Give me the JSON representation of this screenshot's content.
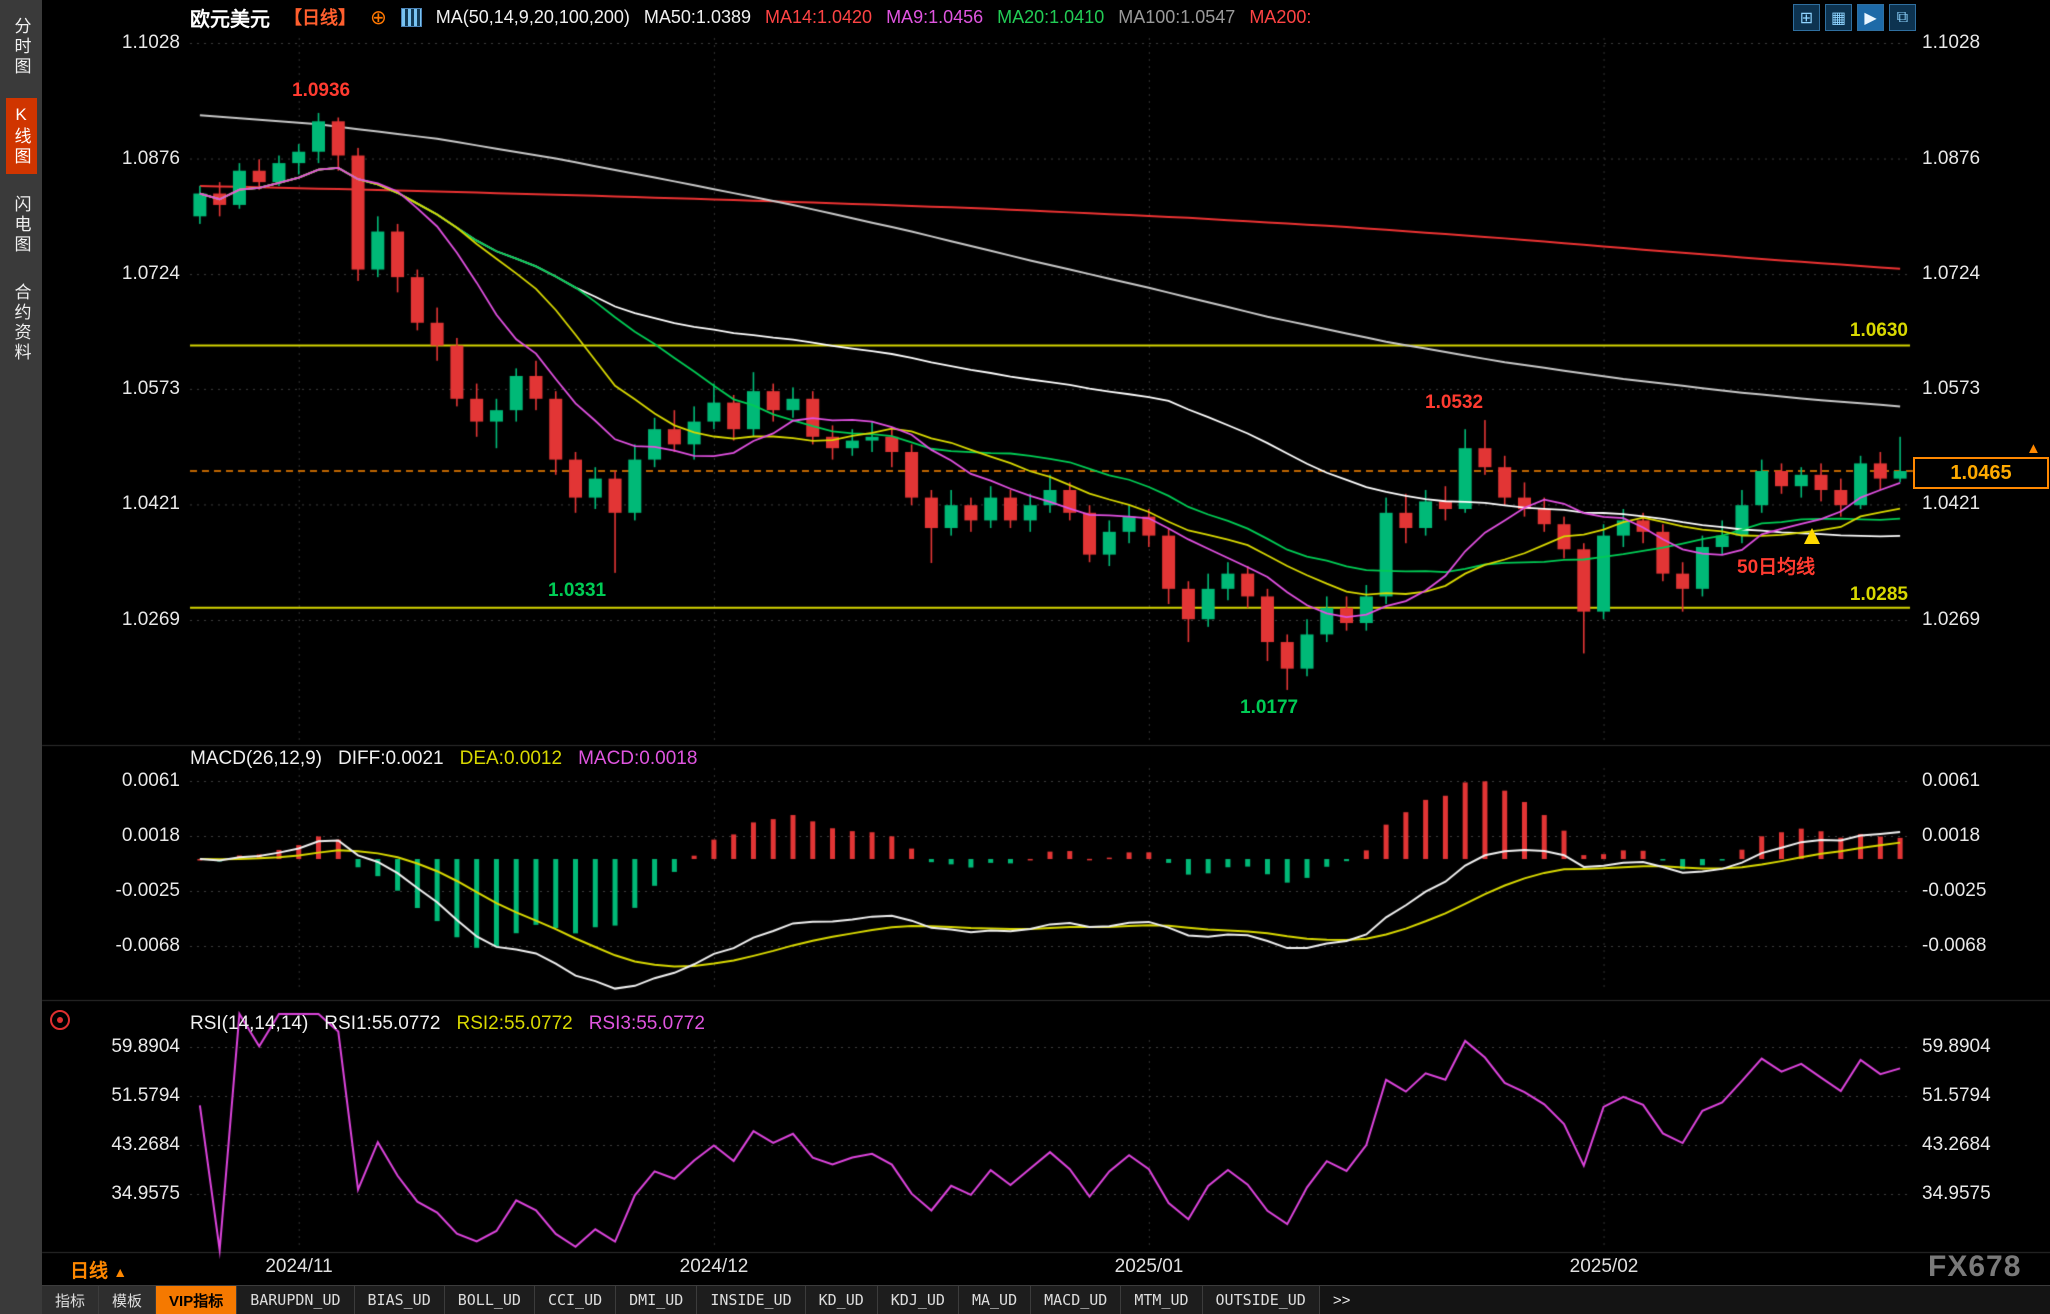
{
  "sidebar": {
    "items": [
      {
        "label": "分时图",
        "active": false
      },
      {
        "label": "K线图",
        "active": true
      },
      {
        "label": "闪电图",
        "active": false
      },
      {
        "label": "合约资料",
        "active": false
      }
    ]
  },
  "header": {
    "symbol": "欧元美元",
    "period": "【日线】",
    "plus_icon": "⊕",
    "ma_group": "MA(50,14,9,20,100,200)",
    "ma50": "MA50:1.0389",
    "ma14": "MA14:1.0420",
    "ma9": "MA9:1.0456",
    "ma20": "MA20:1.0410",
    "ma100": "MA100:1.0547",
    "ma200": "MA200:"
  },
  "footer": {
    "period_label": "日线",
    "period_arrow": "▲",
    "watermark": "FX678"
  },
  "toolbar": {
    "tabs": [
      {
        "label": "指标"
      },
      {
        "label": "模板"
      },
      {
        "label": "VIP指标"
      }
    ],
    "indicators": [
      {
        "label": "BARUPDN_UD"
      },
      {
        "label": "BIAS_UD"
      },
      {
        "label": "BOLL_UD"
      },
      {
        "label": "CCI_UD"
      },
      {
        "label": "DMI_UD"
      },
      {
        "label": "INSIDE_UD"
      },
      {
        "label": "KD_UD"
      },
      {
        "label": "KDJ_UD"
      },
      {
        "label": "MA_UD"
      },
      {
        "label": "MACD_UD"
      },
      {
        "label": "MTM_UD"
      },
      {
        "label": "OUTSIDE_UD"
      }
    ],
    "more": ">>"
  },
  "chart_data": {
    "type": "candlestick",
    "title": "欧元美元 日线",
    "main_axis": [
      1.1028,
      1.0876,
      1.0724,
      1.0573,
      1.0421,
      1.0269
    ],
    "x_labels": [
      {
        "label": "2024/11",
        "index": 5
      },
      {
        "label": "2024/12",
        "index": 26
      },
      {
        "label": "2025/01",
        "index": 48
      },
      {
        "label": "2025/02",
        "index": 71
      }
    ],
    "candles_ohlc": [
      [
        1.08,
        1.084,
        1.079,
        1.083
      ],
      [
        1.083,
        1.0845,
        1.08,
        1.0815
      ],
      [
        1.0815,
        1.087,
        1.081,
        1.086
      ],
      [
        1.086,
        1.0875,
        1.0835,
        1.0845
      ],
      [
        1.0845,
        1.088,
        1.084,
        1.087
      ],
      [
        1.087,
        1.0895,
        1.0855,
        1.0885
      ],
      [
        1.0885,
        1.0936,
        1.087,
        1.0925
      ],
      [
        1.0925,
        1.093,
        1.086,
        1.088
      ],
      [
        1.088,
        1.089,
        1.0715,
        1.073
      ],
      [
        1.073,
        1.08,
        1.072,
        1.078
      ],
      [
        1.078,
        1.079,
        1.07,
        1.072
      ],
      [
        1.072,
        1.073,
        1.065,
        1.066
      ],
      [
        1.066,
        1.068,
        1.061,
        1.063
      ],
      [
        1.063,
        1.064,
        1.055,
        1.056
      ],
      [
        1.056,
        1.058,
        1.051,
        1.053
      ],
      [
        1.053,
        1.056,
        1.0495,
        1.0545
      ],
      [
        1.0545,
        1.06,
        1.053,
        1.059
      ],
      [
        1.059,
        1.061,
        1.0545,
        1.056
      ],
      [
        1.056,
        1.057,
        1.046,
        1.048
      ],
      [
        1.048,
        1.049,
        1.041,
        1.043
      ],
      [
        1.043,
        1.047,
        1.0415,
        1.0455
      ],
      [
        1.0455,
        1.0465,
        1.0331,
        1.041
      ],
      [
        1.041,
        1.05,
        1.04,
        1.048
      ],
      [
        1.048,
        1.0535,
        1.047,
        1.052
      ],
      [
        1.052,
        1.0545,
        1.049,
        1.05
      ],
      [
        1.05,
        1.055,
        1.048,
        1.053
      ],
      [
        1.053,
        1.058,
        1.052,
        1.0555
      ],
      [
        1.0555,
        1.0565,
        1.0505,
        1.052
      ],
      [
        1.052,
        1.0595,
        1.051,
        1.057
      ],
      [
        1.057,
        1.058,
        1.053,
        1.0545
      ],
      [
        1.0545,
        1.0575,
        1.0535,
        1.056
      ],
      [
        1.056,
        1.057,
        1.05,
        1.051
      ],
      [
        1.051,
        1.0525,
        1.048,
        1.0495
      ],
      [
        1.0495,
        1.052,
        1.0485,
        1.0505
      ],
      [
        1.0505,
        1.053,
        1.049,
        1.051
      ],
      [
        1.051,
        1.052,
        1.047,
        1.049
      ],
      [
        1.049,
        1.05,
        1.042,
        1.043
      ],
      [
        1.043,
        1.044,
        1.0344,
        1.039
      ],
      [
        1.039,
        1.044,
        1.038,
        1.042
      ],
      [
        1.042,
        1.043,
        1.0385,
        1.04
      ],
      [
        1.04,
        1.0445,
        1.039,
        1.043
      ],
      [
        1.043,
        1.044,
        1.039,
        1.04
      ],
      [
        1.04,
        1.0435,
        1.0385,
        1.042
      ],
      [
        1.042,
        1.046,
        1.041,
        1.044
      ],
      [
        1.044,
        1.045,
        1.04,
        1.041
      ],
      [
        1.041,
        1.042,
        1.0345,
        1.0355
      ],
      [
        1.0355,
        1.04,
        1.034,
        1.0385
      ],
      [
        1.0385,
        1.042,
        1.037,
        1.0405
      ],
      [
        1.0405,
        1.0415,
        1.0365,
        1.038
      ],
      [
        1.038,
        1.039,
        1.029,
        1.031
      ],
      [
        1.031,
        1.032,
        1.024,
        1.027
      ],
      [
        1.027,
        1.033,
        1.026,
        1.031
      ],
      [
        1.031,
        1.0345,
        1.0295,
        1.033
      ],
      [
        1.033,
        1.034,
        1.0285,
        1.03
      ],
      [
        1.03,
        1.031,
        1.0215,
        1.024
      ],
      [
        1.024,
        1.025,
        1.0177,
        1.0205
      ],
      [
        1.0205,
        1.027,
        1.0195,
        1.025
      ],
      [
        1.025,
        1.03,
        1.024,
        1.0285
      ],
      [
        1.0285,
        1.03,
        1.0255,
        1.0265
      ],
      [
        1.0265,
        1.0315,
        1.0255,
        1.03
      ],
      [
        1.03,
        1.043,
        1.029,
        1.041
      ],
      [
        1.041,
        1.0435,
        1.037,
        1.039
      ],
      [
        1.039,
        1.044,
        1.038,
        1.0425
      ],
      [
        1.0425,
        1.0445,
        1.04,
        1.0415
      ],
      [
        1.0415,
        1.052,
        1.041,
        1.0495
      ],
      [
        1.0495,
        1.0532,
        1.046,
        1.047
      ],
      [
        1.047,
        1.0485,
        1.042,
        1.043
      ],
      [
        1.043,
        1.045,
        1.0405,
        1.0415
      ],
      [
        1.0415,
        1.043,
        1.0385,
        1.0395
      ],
      [
        1.0395,
        1.0405,
        1.035,
        1.0362
      ],
      [
        1.0362,
        1.037,
        1.0225,
        1.028
      ],
      [
        1.028,
        1.0395,
        1.027,
        1.038
      ],
      [
        1.038,
        1.0415,
        1.0365,
        1.04
      ],
      [
        1.04,
        1.041,
        1.037,
        1.0385
      ],
      [
        1.0385,
        1.0395,
        1.032,
        1.033
      ],
      [
        1.033,
        1.0345,
        1.028,
        1.031
      ],
      [
        1.031,
        1.038,
        1.03,
        1.0365
      ],
      [
        1.0365,
        1.04,
        1.0355,
        1.038
      ],
      [
        1.038,
        1.044,
        1.037,
        1.042
      ],
      [
        1.042,
        1.048,
        1.041,
        1.0465
      ],
      [
        1.0465,
        1.0475,
        1.0435,
        1.0445
      ],
      [
        1.0445,
        1.047,
        1.043,
        1.046
      ],
      [
        1.046,
        1.0475,
        1.0425,
        1.044
      ],
      [
        1.044,
        1.0455,
        1.0405,
        1.042
      ],
      [
        1.042,
        1.0485,
        1.0415,
        1.0475
      ],
      [
        1.0475,
        1.049,
        1.044,
        1.0455
      ],
      [
        1.0455,
        1.051,
        1.045,
        1.0465
      ]
    ],
    "ma100_points": [
      [
        0,
        1.0933
      ],
      [
        6,
        1.0921
      ],
      [
        12,
        1.0902
      ],
      [
        18,
        1.0876
      ],
      [
        24,
        1.0846
      ],
      [
        30,
        1.0815
      ],
      [
        36,
        1.078
      ],
      [
        42,
        1.0742
      ],
      [
        48,
        1.0706
      ],
      [
        54,
        1.0668
      ],
      [
        60,
        1.0635
      ],
      [
        66,
        1.0608
      ],
      [
        72,
        1.0586
      ],
      [
        78,
        1.0568
      ],
      [
        82,
        1.0558
      ],
      [
        86,
        1.055
      ]
    ],
    "ma200_points": [
      [
        0,
        1.084
      ],
      [
        10,
        1.0834
      ],
      [
        20,
        1.0827
      ],
      [
        30,
        1.0819
      ],
      [
        40,
        1.081
      ],
      [
        50,
        1.0798
      ],
      [
        58,
        1.0786
      ],
      [
        66,
        1.0771
      ],
      [
        74,
        1.0754
      ],
      [
        80,
        1.0742
      ],
      [
        86,
        1.0731
      ]
    ],
    "support_resistance": [
      {
        "value": 1.063,
        "label": "1.0630"
      },
      {
        "value": 1.0285,
        "label": "1.0285"
      }
    ],
    "current_price": {
      "value": 1.0465,
      "label": "1.0465"
    },
    "annotations": [
      {
        "text": "1.0936",
        "type": "swing-high"
      },
      {
        "text": "1.0331",
        "type": "swing-low"
      },
      {
        "text": "1.0532",
        "type": "swing-high"
      },
      {
        "text": "1.0177",
        "type": "swing-low"
      },
      {
        "text": "50日均线",
        "type": "note"
      }
    ],
    "macd_panel": {
      "title": "MACD(26,12,9)",
      "diff": "DIFF:0.0021",
      "dea": "DEA:0.0012",
      "macd": "MACD:0.0018",
      "axis": [
        0.0061,
        0.0018,
        -0.0025,
        -0.0068
      ]
    },
    "rsi_panel": {
      "title": "RSI(14,14,14)",
      "rsi1": "RSI1:55.0772",
      "rsi2": "RSI2:55.0772",
      "rsi3": "RSI3:55.0772",
      "axis": [
        59.8904,
        51.5794,
        43.2684,
        34.9575
      ]
    }
  }
}
